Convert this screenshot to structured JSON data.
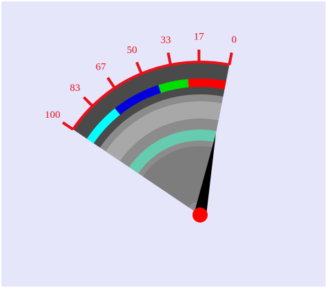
{
  "chart_data": {
    "type": "gauge",
    "ylim": [
      0,
      100
    ],
    "yticks": [
      0,
      17,
      33,
      50,
      67,
      83,
      100
    ],
    "tick_color": "#e8101a",
    "value": 0,
    "needle_color": "#000000",
    "bands": [
      {
        "from": 0,
        "to": 24,
        "color": "#ff0000"
      },
      {
        "from": 24,
        "to": 43,
        "color": "#00e000"
      },
      {
        "from": 43,
        "to": 74,
        "color": "#0000dd"
      },
      {
        "from": 74,
        "to": 100,
        "color": "#00ffff"
      }
    ]
  }
}
